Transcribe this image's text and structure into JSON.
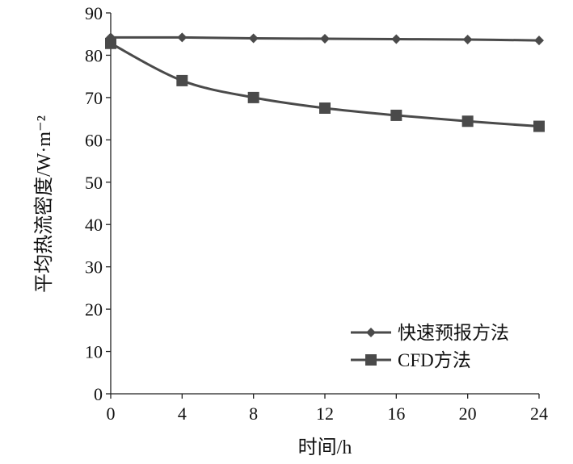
{
  "chart_data": {
    "type": "line",
    "title": "",
    "xlabel": "时间/h",
    "ylabel": "平均热流密度/W·m⁻²",
    "x": [
      0,
      4,
      8,
      12,
      16,
      20,
      24
    ],
    "xlim": [
      0,
      24
    ],
    "ylim": [
      0,
      90
    ],
    "xticks": [
      0,
      4,
      8,
      12,
      16,
      20,
      24
    ],
    "yticks": [
      0,
      10,
      20,
      30,
      40,
      50,
      60,
      70,
      80,
      90
    ],
    "grid": false,
    "legend_position": "bottom-right",
    "series": [
      {
        "name": "快速预报方法",
        "marker": "diamond",
        "color": "#4a4a4a",
        "values": [
          84.2,
          84.2,
          84.0,
          83.9,
          83.8,
          83.7,
          83.5
        ]
      },
      {
        "name": "CFD方法",
        "marker": "square",
        "color": "#4a4a4a",
        "values": [
          82.8,
          74.0,
          70.0,
          67.5,
          65.8,
          64.4,
          63.2
        ]
      }
    ]
  }
}
